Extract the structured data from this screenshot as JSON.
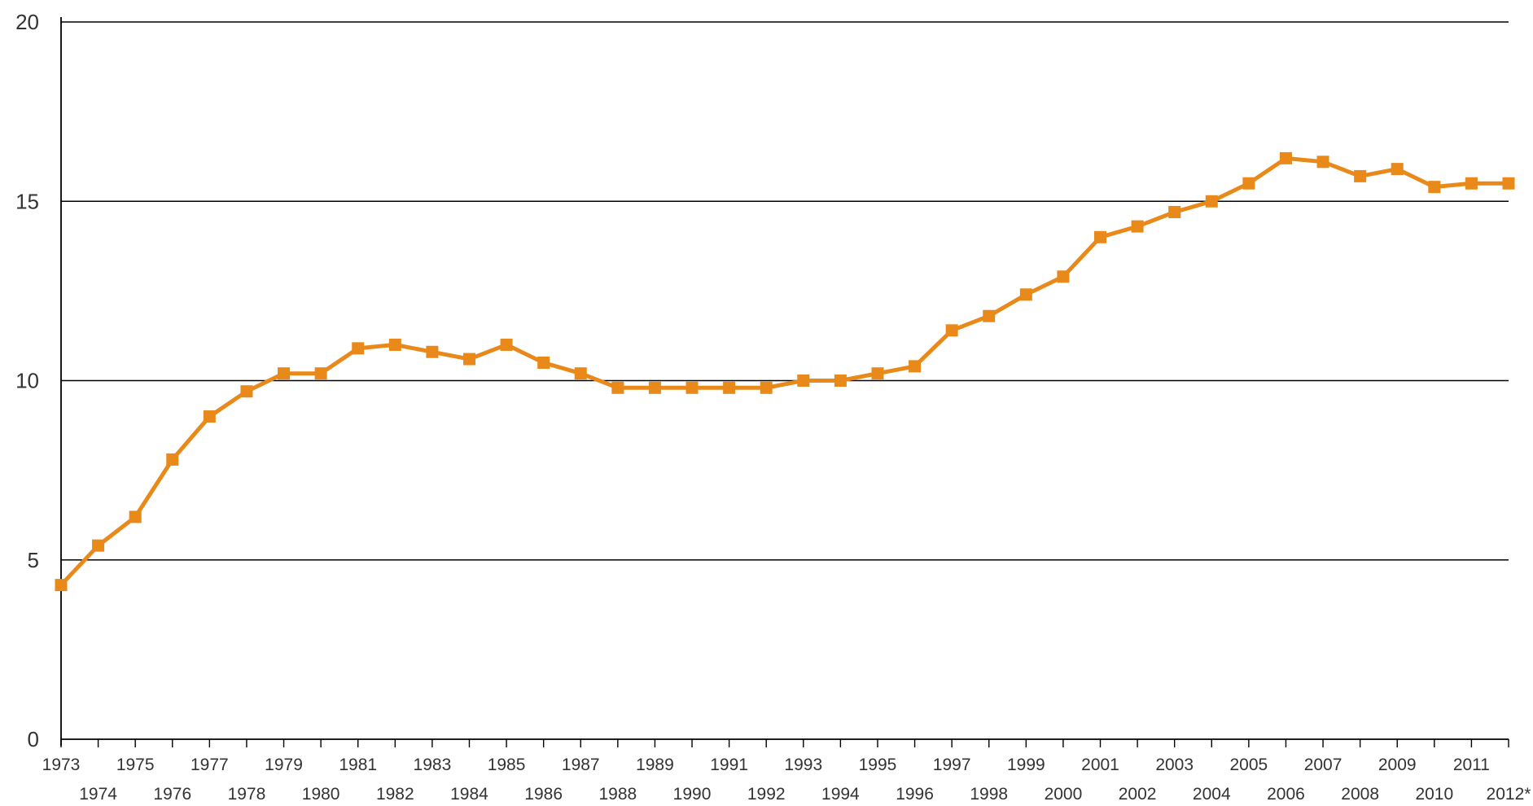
{
  "chart_data": {
    "type": "line",
    "title": "",
    "xlabel": "",
    "ylabel": "",
    "ylim": [
      0,
      20
    ],
    "yticks": [
      "0",
      "5",
      "10",
      "15",
      "20"
    ],
    "grid": "horizontal",
    "categories": [
      "1973",
      "1974",
      "1975",
      "1976",
      "1977",
      "1978",
      "1979",
      "1980",
      "1981",
      "1982",
      "1983",
      "1984",
      "1985",
      "1986",
      "1987",
      "1988",
      "1989",
      "1990",
      "1991",
      "1992",
      "1993",
      "1994",
      "1995",
      "1996",
      "1997",
      "1998",
      "1999",
      "2000",
      "2001",
      "2002",
      "2003",
      "2004",
      "2005",
      "2006",
      "2007",
      "2008",
      "2009",
      "2010",
      "2011",
      "2012*"
    ],
    "series": [
      {
        "color": "#e8891a",
        "values": [
          4.3,
          5.4,
          6.2,
          7.8,
          9.0,
          9.7,
          10.2,
          10.2,
          10.9,
          11.0,
          10.8,
          10.6,
          11.0,
          10.5,
          10.2,
          9.8,
          9.8,
          9.8,
          9.8,
          9.8,
          10.0,
          10.0,
          10.2,
          10.4,
          11.4,
          11.8,
          12.4,
          12.9,
          14.0,
          14.3,
          14.7,
          15.0,
          15.5,
          16.2,
          16.1,
          15.7,
          15.9,
          15.4,
          15.5,
          15.5
        ]
      }
    ]
  }
}
